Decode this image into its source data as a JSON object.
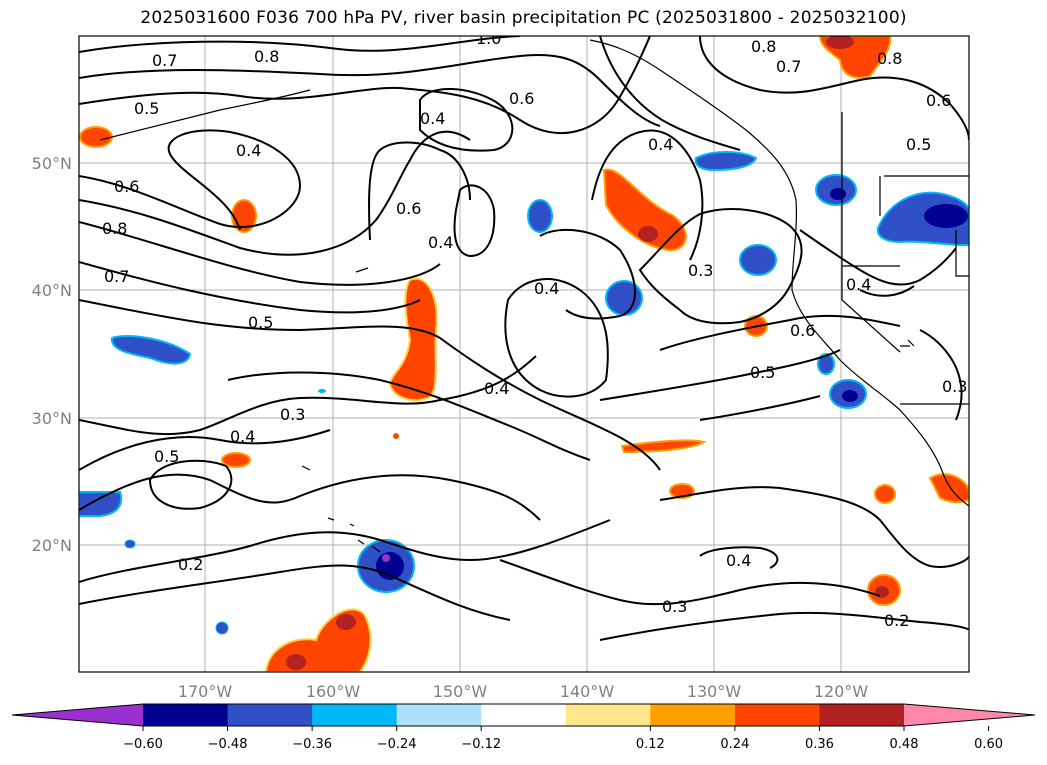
{
  "title": "2025031600 F036 700 hPa PV, river basin precipitation PC (2025031800 - 2025032100)",
  "map": {
    "lat_labels": [
      "50°N",
      "40°N",
      "30°N",
      "20°N"
    ],
    "lon_labels": [
      "170°W",
      "160°W",
      "150°W",
      "140°W",
      "130°W",
      "120°W"
    ]
  },
  "contour_labels": [
    "1.0",
    "0.8",
    "0.8",
    "0.7",
    "0.7",
    "0.8",
    "0.6",
    "0.5",
    "0.4",
    "0.6",
    "0.4",
    "0.5",
    "0.6",
    "0.6",
    "0.4",
    "0.8",
    "0.7",
    "0.4",
    "0.3",
    "0.4",
    "0.5",
    "0.6",
    "0.4",
    "0.5",
    "0.3",
    "0.4",
    "0.5",
    "0.3",
    "0.2",
    "0.4",
    "0.4",
    "0.3",
    "0.2"
  ],
  "colorbar": {
    "colors": [
      "#9b30d0",
      "#000090",
      "#3050c8",
      "#00b8f8",
      "#aee0fa",
      "#ffffff",
      "#ffe68a",
      "#ffa000",
      "#ff4500",
      "#b22222",
      "#ff88aa"
    ],
    "ticks": [
      "−0.60",
      "−0.48",
      "−0.36",
      "−0.24",
      "−0.12",
      "0.12",
      "0.24",
      "0.36",
      "0.48",
      "0.60"
    ]
  }
}
